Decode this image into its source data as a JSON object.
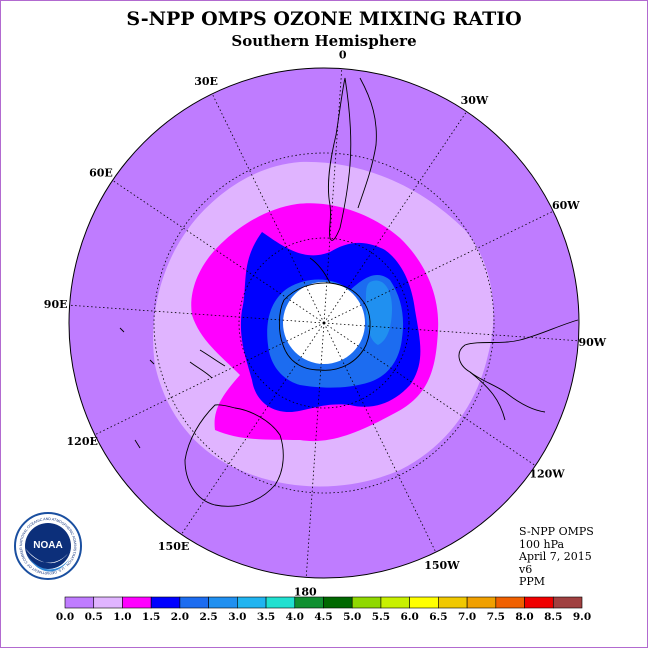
{
  "title": "S-NPP OMPS OZONE MIXING RATIO",
  "subtitle": "Southern Hemisphere",
  "info": {
    "instrument": "S-NPP OMPS",
    "level": "100 hPa",
    "date": "April 7, 2015",
    "version": "v6",
    "units": "PPM"
  },
  "logo": {
    "text": "NOAA",
    "ring_text": "NATIONAL OCEANIC AND ATMOSPHERIC ADMINISTRATION · U.S. DEPARTMENT OF COMMERCE"
  },
  "longitude_labels": [
    {
      "text": "90W",
      "deg": -90
    },
    {
      "text": "60W",
      "deg": -60
    },
    {
      "text": "30W",
      "deg": -30
    },
    {
      "text": "0",
      "deg": 0
    },
    {
      "text": "30E",
      "deg": 30
    },
    {
      "text": "60E",
      "deg": 60
    },
    {
      "text": "90E",
      "deg": 90
    },
    {
      "text": "120E",
      "deg": 120
    },
    {
      "text": "150E",
      "deg": 150
    },
    {
      "text": "180",
      "deg": 180
    },
    {
      "text": "150W",
      "deg": -150
    },
    {
      "text": "120W",
      "deg": -120
    }
  ],
  "colorbar": {
    "ticks": [
      "0.0",
      "0.5",
      "1.0",
      "1.5",
      "2.0",
      "2.5",
      "3.0",
      "3.5",
      "4.0",
      "4.5",
      "5.0",
      "5.5",
      "6.0",
      "6.5",
      "7.0",
      "7.5",
      "8.0",
      "8.5",
      "9.0"
    ],
    "colors": [
      "#bf7cff",
      "#e0b4ff",
      "#ff00ff",
      "#0000ff",
      "#1c6cf0",
      "#2090f0",
      "#20b4f0",
      "#20e0d0",
      "#109030",
      "#006800",
      "#90d800",
      "#c8f000",
      "#ffff00",
      "#f0c800",
      "#f0a000",
      "#f06000",
      "#f00000",
      "#a04040"
    ]
  },
  "map_colors": {
    "band_0_0_5": "#bf7cff",
    "band_0_5_1_0": "#e0b4ff",
    "band_1_0_1_5": "#ff00ff",
    "band_1_5_2_0": "#0000ff",
    "band_2_0_2_5": "#1c6cf0",
    "band_2_5_3_0": "#2090f0",
    "no_data": "#ffffff"
  }
}
